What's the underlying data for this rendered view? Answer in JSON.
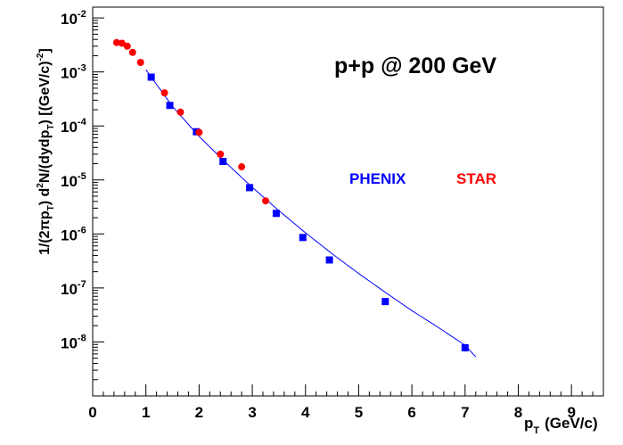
{
  "chart_data": {
    "type": "scatter",
    "annotation": "p+p @ 200 GeV",
    "xlabel": {
      "main": "p",
      "sub": "T",
      "unit": "(GeV/c)"
    },
    "ylabel": {
      "p1": "1/(2πp",
      "sub1": "T",
      "p2": ") d",
      "sup1": "2",
      "p3": "N/(dydp",
      "sub2": "T",
      "p4": ")  [(GeV/c)",
      "sup2": "-2",
      "p5": "]"
    },
    "xlim": [
      0,
      9.6
    ],
    "ylim_log10": [
      -9,
      -1.8
    ],
    "log_y": true,
    "grid": false,
    "x_ticks": [
      "0",
      "1",
      "2",
      "3",
      "4",
      "5",
      "6",
      "7",
      "8",
      "9"
    ],
    "y_ticks": [
      {
        "base": "10",
        "exp": "-2"
      },
      {
        "base": "10",
        "exp": "-3"
      },
      {
        "base": "10",
        "exp": "-4"
      },
      {
        "base": "10",
        "exp": "-5"
      },
      {
        "base": "10",
        "exp": "-6"
      },
      {
        "base": "10",
        "exp": "-7"
      },
      {
        "base": "10",
        "exp": "-8"
      }
    ],
    "series": [
      {
        "name": "PHENIX",
        "color": "#0000ff",
        "marker": "square",
        "points": [
          [
            1.1,
            0.0008
          ],
          [
            1.45,
            0.00024
          ],
          [
            1.95,
            7.8e-05
          ],
          [
            2.45,
            2.2e-05
          ],
          [
            2.95,
            7.2e-06
          ],
          [
            3.45,
            2.4e-06
          ],
          [
            3.95,
            8.6e-07
          ],
          [
            4.45,
            3.3e-07
          ],
          [
            5.5,
            5.6e-08
          ],
          [
            7.0,
            7.8e-09
          ]
        ]
      },
      {
        "name": "STAR",
        "color": "#ff0000",
        "marker": "circle",
        "points": [
          [
            0.45,
            0.0035
          ],
          [
            0.55,
            0.0034
          ],
          [
            0.65,
            0.003
          ],
          [
            0.75,
            0.0023
          ],
          [
            0.9,
            0.0015
          ],
          [
            1.35,
            0.00041
          ],
          [
            1.65,
            0.00018
          ],
          [
            2.0,
            7.6e-05
          ],
          [
            2.4,
            3e-05
          ],
          [
            2.8,
            1.75e-05
          ],
          [
            3.25,
            4.1e-06
          ]
        ]
      }
    ],
    "fit_curve": {
      "color": "#0000ff",
      "points": [
        [
          1.0,
          0.0011
        ],
        [
          1.5,
          0.00023
        ],
        [
          2.0,
          6.4e-05
        ],
        [
          2.5,
          2.1e-05
        ],
        [
          3.0,
          7.3e-06
        ],
        [
          3.5,
          2.7e-06
        ],
        [
          4.0,
          1.05e-06
        ],
        [
          4.5,
          4.3e-07
        ],
        [
          5.0,
          1.85e-07
        ],
        [
          5.5,
          8.3e-08
        ],
        [
          6.0,
          3.8e-08
        ],
        [
          6.5,
          1.85e-08
        ],
        [
          7.0,
          8.7e-09
        ],
        [
          7.2,
          5.3e-09
        ]
      ]
    },
    "error_bar_last": [
      7.0,
      6.6e-09,
      9.2e-09
    ]
  }
}
